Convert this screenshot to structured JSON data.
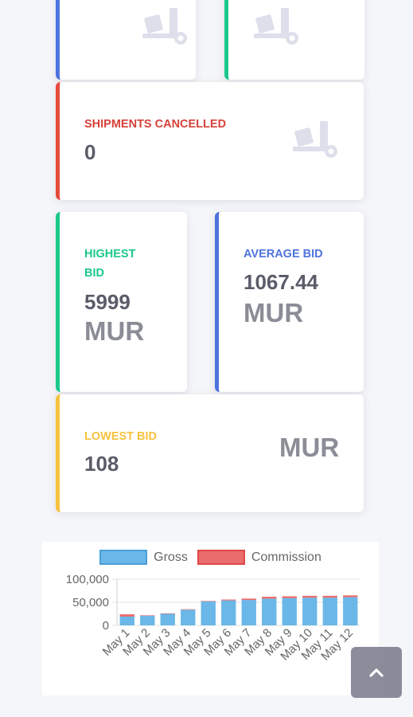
{
  "cards": {
    "top_left_icon": "truck-loading-icon",
    "top_right_icon": "truck-loading-icon",
    "shipments_cancelled": {
      "label": "SHIPMENTS CANCELLED",
      "value": "0",
      "icon": "truck-loading-icon"
    },
    "highest_bid": {
      "label_line1": "HIGHEST",
      "label_line2": "BID",
      "value": "5999",
      "unit": "MUR"
    },
    "average_bid": {
      "label": "AVERAGE BID",
      "value": "1067.44",
      "unit": "MUR"
    },
    "lowest_bid": {
      "label": "LOWEST BID",
      "value": "108",
      "unit": "MUR"
    }
  },
  "colors": {
    "blue": "#4e73df",
    "green": "#1cc88a",
    "red": "#e74a3b",
    "yellow": "#f6c23e",
    "gross": "#6bb7e8",
    "commission": "#ea6c6c"
  },
  "chart_data": {
    "type": "bar",
    "stacked": true,
    "categories": [
      "May 1",
      "May 2",
      "May 3",
      "May 4",
      "May 5",
      "May 6",
      "May 7",
      "May 8",
      "May 9",
      "May 10",
      "May 11",
      "May 12"
    ],
    "series": [
      {
        "name": "Gross",
        "values": [
          19000,
          21000,
          25000,
          34000,
          52000,
          54000,
          55000,
          58000,
          59000,
          60000,
          60000,
          61000
        ]
      },
      {
        "name": "Commission",
        "values": [
          5000,
          1000,
          1000,
          1000,
          1000,
          2000,
          3000,
          4000,
          4000,
          4000,
          4000,
          4000
        ]
      }
    ],
    "yticks": [
      "100,000",
      "50,000",
      "0"
    ],
    "ylim": [
      0,
      100000
    ],
    "legend_position": "top",
    "grid": true
  },
  "scroll_top": {
    "icon": "chevron-up-icon"
  }
}
